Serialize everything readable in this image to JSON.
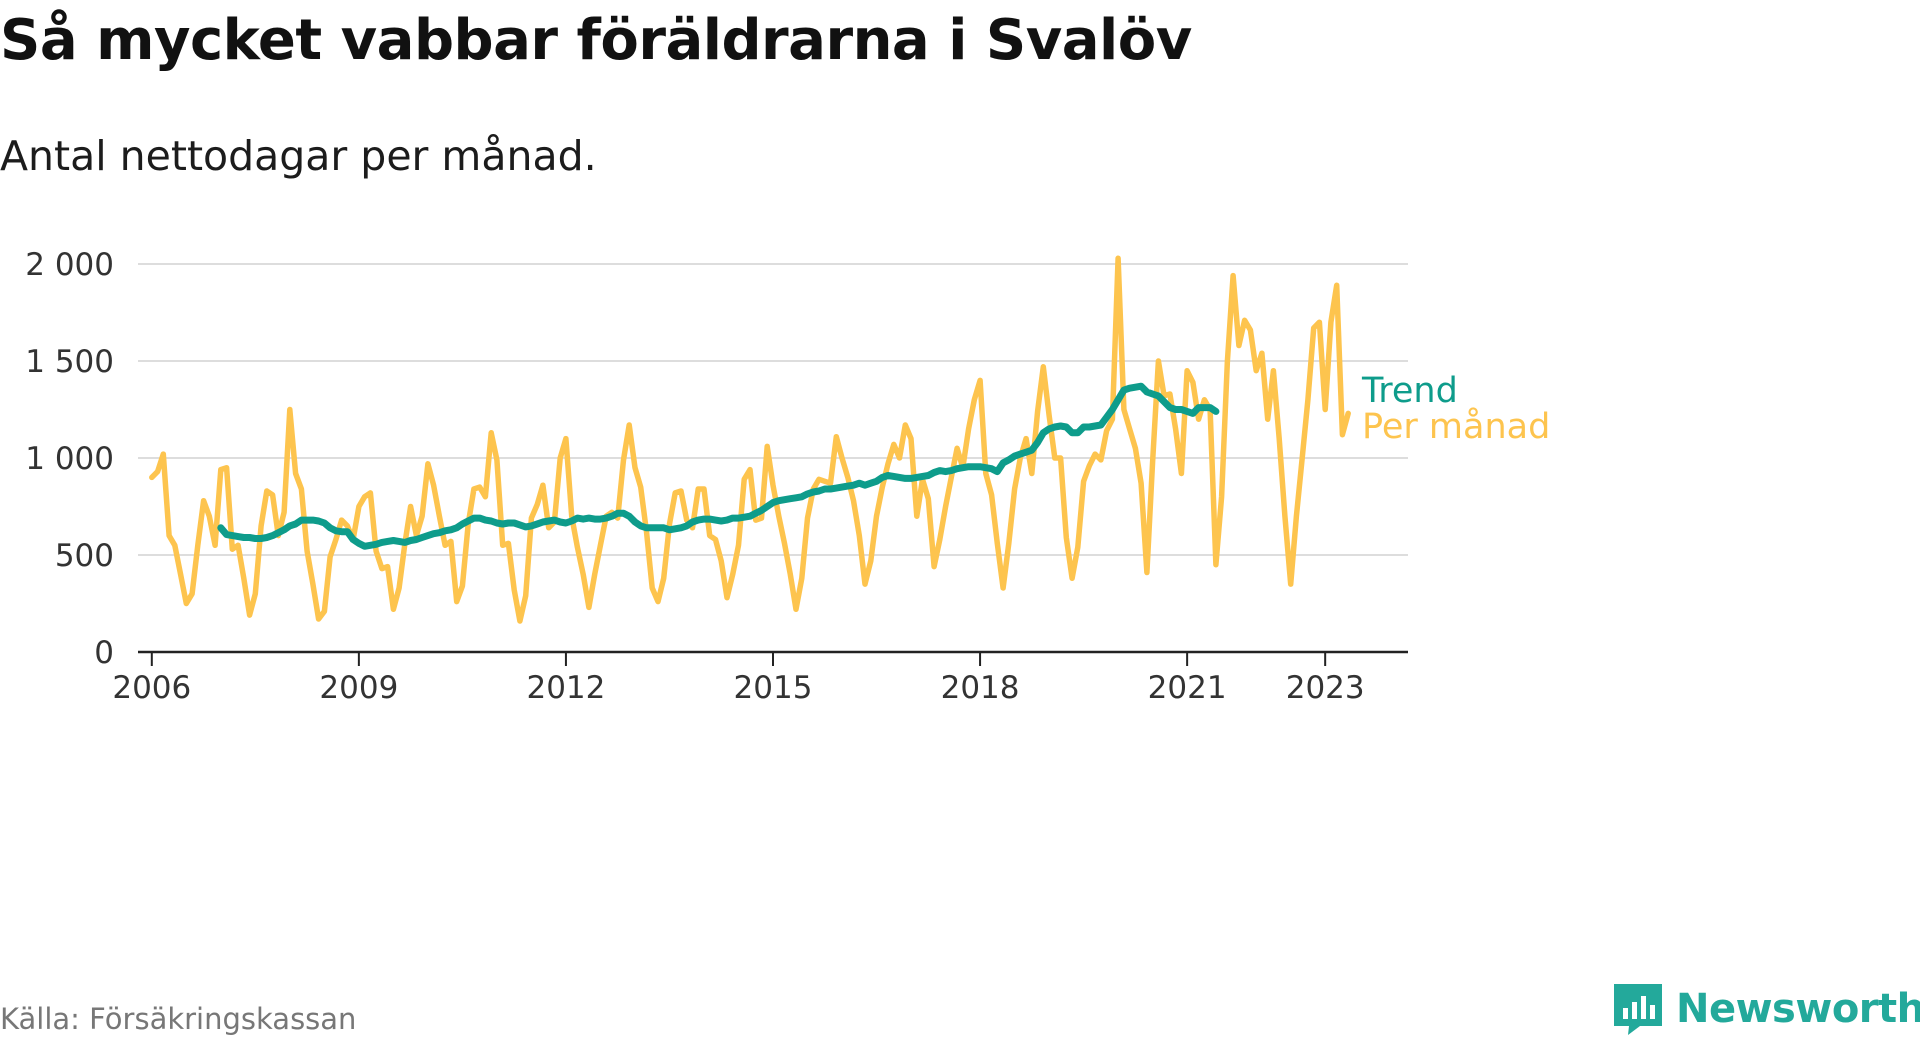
{
  "title": "Så mycket vabbar föräldrarna i Svalöv",
  "subtitle": "Antal nettodagar per månad.",
  "source": "Källa: Försäkringskassan",
  "brand": "Newsworthy",
  "colors": {
    "monthly": "#fdc44e",
    "trend": "#0e9c8b",
    "grid": "#dddddd",
    "axis": "#222222",
    "brand": "#23a99b"
  },
  "chart_data": {
    "type": "line",
    "title": "Så mycket vabbar föräldrarna i Svalöv",
    "subtitle": "Antal nettodagar per månad.",
    "xlabel": "",
    "ylabel": "",
    "xlim": [
      2005.8,
      2024.2
    ],
    "ylim": [
      0,
      2000
    ],
    "grid": true,
    "x_ticks": [
      2006,
      2009,
      2012,
      2015,
      2018,
      2021,
      2023
    ],
    "x_tick_labels": [
      "2006",
      "2009",
      "2012",
      "2015",
      "2018",
      "2021",
      "2023"
    ],
    "y_ticks": [
      0,
      500,
      1000,
      1500,
      2000
    ],
    "y_tick_labels": [
      "0",
      "500",
      "1 000",
      "1 500",
      "2 000"
    ],
    "legend": "inline labels at right end of lines",
    "series": [
      {
        "name": "Per månad",
        "x_start": "2006-01",
        "step": "1 month",
        "values": [
          900,
          930,
          1020,
          600,
          550,
          400,
          250,
          300,
          550,
          780,
          700,
          550,
          940,
          950,
          530,
          550,
          380,
          190,
          300,
          650,
          830,
          810,
          600,
          720,
          1250,
          920,
          840,
          520,
          350,
          170,
          210,
          490,
          580,
          680,
          650,
          580,
          750,
          800,
          820,
          520,
          430,
          440,
          220,
          330,
          560,
          750,
          600,
          700,
          970,
          860,
          700,
          550,
          570,
          260,
          340,
          660,
          840,
          850,
          800,
          1130,
          990,
          550,
          560,
          320,
          160,
          290,
          690,
          760,
          860,
          640,
          670,
          1000,
          1100,
          700,
          540,
          400,
          230,
          400,
          550,
          700,
          720,
          690,
          990,
          1170,
          950,
          850,
          620,
          330,
          260,
          380,
          660,
          820,
          830,
          680,
          640,
          840,
          840,
          600,
          580,
          470,
          280,
          400,
          550,
          890,
          940,
          680,
          690,
          1060,
          860,
          700,
          560,
          400,
          220,
          380,
          690,
          840,
          890,
          880,
          870,
          1110,
          1000,
          900,
          780,
          600,
          350,
          470,
          700,
          850,
          970,
          1070,
          1000,
          1170,
          1100,
          700,
          890,
          790,
          440,
          580,
          750,
          900,
          1050,
          950,
          1150,
          1300,
          1400,
          920,
          810,
          560,
          330,
          560,
          840,
          1000,
          1100,
          920,
          1240,
          1470,
          1220,
          1000,
          1000,
          590,
          380,
          540,
          880,
          960,
          1020,
          990,
          1140,
          1200,
          2030,
          1250,
          1150,
          1050,
          870,
          410,
          980,
          1500,
          1320,
          1330,
          1150,
          920,
          1450,
          1390,
          1200,
          1300,
          1250,
          450,
          800,
          1500,
          1940,
          1580,
          1710,
          1660,
          1450,
          1540,
          1200,
          1450,
          1100,
          700,
          350,
          700,
          1000,
          1300,
          1670,
          1700,
          1250,
          1700,
          1890,
          1120,
          1230
        ],
        "color": "#fdc44e"
      },
      {
        "name": "Trend",
        "x_start": "2007-01",
        "step": "1 month",
        "values": [
          640,
          605,
          600,
          595,
          590,
          590,
          585,
          585,
          590,
          600,
          615,
          630,
          650,
          660,
          680,
          680,
          680,
          675,
          665,
          640,
          625,
          620,
          620,
          580,
          560,
          545,
          550,
          555,
          565,
          570,
          575,
          570,
          565,
          575,
          580,
          590,
          600,
          610,
          615,
          625,
          630,
          640,
          660,
          675,
          690,
          690,
          680,
          675,
          665,
          660,
          665,
          665,
          655,
          645,
          650,
          660,
          670,
          675,
          680,
          670,
          665,
          675,
          690,
          685,
          690,
          685,
          685,
          690,
          700,
          715,
          715,
          700,
          670,
          650,
          640,
          640,
          640,
          640,
          630,
          635,
          640,
          650,
          670,
          680,
          685,
          685,
          680,
          675,
          680,
          690,
          690,
          695,
          700,
          715,
          730,
          750,
          770,
          780,
          785,
          790,
          795,
          800,
          815,
          825,
          830,
          840,
          840,
          845,
          850,
          855,
          860,
          870,
          860,
          870,
          880,
          900,
          910,
          905,
          900,
          895,
          895,
          900,
          905,
          910,
          925,
          935,
          930,
          935,
          945,
          950,
          955,
          955,
          955,
          950,
          945,
          930,
          975,
          990,
          1010,
          1020,
          1030,
          1040,
          1080,
          1130,
          1150,
          1160,
          1165,
          1160,
          1130,
          1130,
          1160,
          1160,
          1165,
          1170,
          1210,
          1250,
          1300,
          1350,
          1360,
          1365,
          1370,
          1340,
          1330,
          1320,
          1290,
          1260,
          1250,
          1250,
          1240,
          1230,
          1260,
          1260,
          1260,
          1240
        ],
        "color": "#0e9c8b"
      }
    ]
  }
}
